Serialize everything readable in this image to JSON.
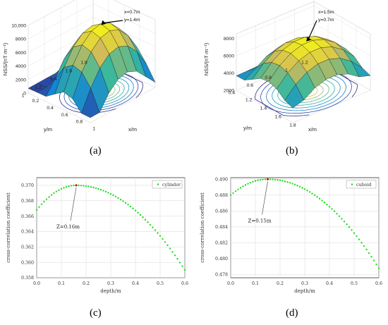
{
  "captions": [
    "(a)",
    "(b)",
    "(c)",
    "(d)"
  ],
  "chart_data": [
    {
      "type": "surface",
      "zlabel": "NSS/(nT·m⁻¹)",
      "xlabel": "x/m",
      "ylabel": "y/m",
      "ztick_labels": [
        "0",
        "2000",
        "4000",
        "6000",
        "8000",
        "10,000"
      ],
      "xtick_labels": [
        "0.2",
        "0.4",
        "0.6",
        "0.8",
        "1"
      ],
      "ytick_labels": [
        "1",
        "1.2",
        "1.4",
        "1.6",
        "1.8"
      ],
      "zlim": [
        0,
        10000
      ],
      "annotation": {
        "lines": [
          "x=0.7m",
          "y=1.4m"
        ]
      },
      "peak": {
        "x": 0.7,
        "y": 1.4,
        "z": 9800
      }
    },
    {
      "type": "surface",
      "zlabel": "NSS/(nT·m⁻¹)",
      "xlabel": "x/m",
      "ylabel": "y/m",
      "ztick_labels": [
        "2000",
        "4000",
        "6000",
        "8000"
      ],
      "xtick_labels": [
        "1.2",
        "1.4",
        "1.6",
        "1.8"
      ],
      "ytick_labels": [
        "0.4",
        "0.6",
        "0.8",
        "1",
        "1.2"
      ],
      "zlim": [
        2000,
        9000
      ],
      "annotation": {
        "lines": [
          "x=1.5m",
          "y=0.7m"
        ]
      },
      "peak": {
        "x": 1.5,
        "y": 0.7,
        "z": 8800
      }
    },
    {
      "type": "scatter",
      "xlabel": "depth/m",
      "ylabel": "cross-correlation coefficient",
      "xlim": [
        0,
        0.6
      ],
      "ylim": [
        0.358,
        0.371
      ],
      "xticks": [
        0,
        0.1,
        0.2,
        0.3,
        0.4,
        0.5,
        0.6
      ],
      "xtick_labels": [
        "0.0",
        "0.1",
        "0.2",
        "0.3",
        "0.4",
        "0.5",
        "0.6"
      ],
      "yticks": [
        0.358,
        0.36,
        0.362,
        0.364,
        0.366,
        0.368,
        0.37
      ],
      "ytick_labels": [
        "0.358",
        "0.360",
        "0.362",
        "0.364",
        "0.366",
        "0.368",
        "0.370"
      ],
      "grid": true,
      "legend_position": "top-right",
      "series": [
        {
          "name": "cylinder",
          "color": "#22dd22",
          "y_start": 0.3668,
          "y_end": 0.359
        }
      ],
      "peak": {
        "x": 0.16,
        "y": 0.37
      },
      "annotation": "Z=0.16m"
    },
    {
      "type": "scatter",
      "xlabel": "depth/m",
      "ylabel": "cross-correlation coefficient",
      "xlim": [
        0,
        0.6
      ],
      "ylim": [
        0.4776,
        0.4902
      ],
      "xticks": [
        0,
        0.1,
        0.2,
        0.3,
        0.4,
        0.5,
        0.6
      ],
      "xtick_labels": [
        "0.0",
        "0.1",
        "0.2",
        "0.3",
        "0.4",
        "0.5",
        "0.6"
      ],
      "yticks": [
        0.478,
        0.48,
        0.482,
        0.484,
        0.486,
        0.488,
        0.49
      ],
      "ytick_labels": [
        "0.478",
        "0.480",
        "0.482",
        "0.484",
        "0.486",
        "0.488",
        "0.490"
      ],
      "grid": true,
      "legend_position": "top-right",
      "series": [
        {
          "name": "cuboid",
          "color": "#22dd22",
          "y_start": 0.488,
          "y_end": 0.4788
        }
      ],
      "peak": {
        "x": 0.15,
        "y": 0.49
      },
      "annotation": "Z=0.15m"
    }
  ]
}
